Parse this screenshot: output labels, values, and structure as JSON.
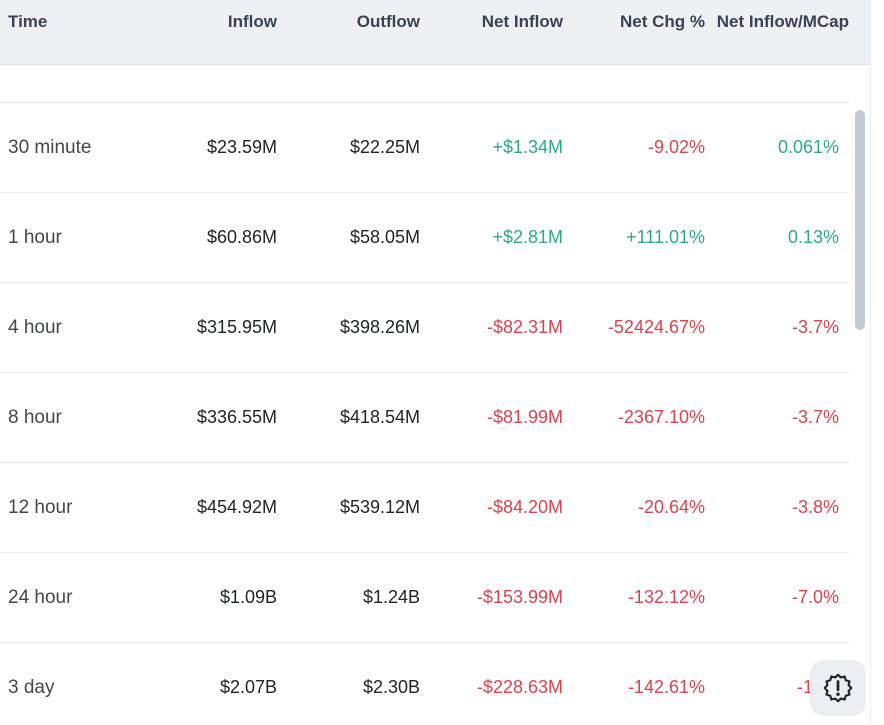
{
  "table": {
    "columns": [
      "Time",
      "Inflow",
      "Outflow",
      "Net Inflow",
      "Net Chg %",
      "Net Inflow/MCap"
    ],
    "rows": [
      {
        "cells": [
          {
            "text": "30 minute",
            "color": "default"
          },
          {
            "text": "$23.59M",
            "color": "default"
          },
          {
            "text": "$22.25M",
            "color": "default"
          },
          {
            "text": "+$1.34M",
            "color": "green"
          },
          {
            "text": "-9.02%",
            "color": "red"
          },
          {
            "text": "0.061%",
            "color": "green"
          }
        ]
      },
      {
        "cells": [
          {
            "text": "1 hour",
            "color": "default"
          },
          {
            "text": "$60.86M",
            "color": "default"
          },
          {
            "text": "$58.05M",
            "color": "default"
          },
          {
            "text": "+$2.81M",
            "color": "green"
          },
          {
            "text": "+111.01%",
            "color": "green"
          },
          {
            "text": "0.13%",
            "color": "green"
          }
        ]
      },
      {
        "cells": [
          {
            "text": "4 hour",
            "color": "default"
          },
          {
            "text": "$315.95M",
            "color": "default"
          },
          {
            "text": "$398.26M",
            "color": "default"
          },
          {
            "text": "-$82.31M",
            "color": "red"
          },
          {
            "text": "-52424.67%",
            "color": "red"
          },
          {
            "text": "-3.7%",
            "color": "red"
          }
        ]
      },
      {
        "cells": [
          {
            "text": "8 hour",
            "color": "default"
          },
          {
            "text": "$336.55M",
            "color": "default"
          },
          {
            "text": "$418.54M",
            "color": "default"
          },
          {
            "text": "-$81.99M",
            "color": "red"
          },
          {
            "text": "-2367.10%",
            "color": "red"
          },
          {
            "text": "-3.7%",
            "color": "red"
          }
        ]
      },
      {
        "cells": [
          {
            "text": "12 hour",
            "color": "default"
          },
          {
            "text": "$454.92M",
            "color": "default"
          },
          {
            "text": "$539.12M",
            "color": "default"
          },
          {
            "text": "-$84.20M",
            "color": "red"
          },
          {
            "text": "-20.64%",
            "color": "red"
          },
          {
            "text": "-3.8%",
            "color": "red"
          }
        ]
      },
      {
        "cells": [
          {
            "text": "24 hour",
            "color": "default"
          },
          {
            "text": "$1.09B",
            "color": "default"
          },
          {
            "text": "$1.24B",
            "color": "default"
          },
          {
            "text": "-$153.99M",
            "color": "red"
          },
          {
            "text": "-132.12%",
            "color": "red"
          },
          {
            "text": "-7.0%",
            "color": "red"
          }
        ]
      },
      {
        "cells": [
          {
            "text": "3 day",
            "color": "default"
          },
          {
            "text": "$2.07B",
            "color": "default"
          },
          {
            "text": "$2.30B",
            "color": "default"
          },
          {
            "text": "-$228.63M",
            "color": "red"
          },
          {
            "text": "-142.61%",
            "color": "red"
          },
          {
            "text": "-10%",
            "color": "red"
          }
        ]
      }
    ]
  },
  "colors": {
    "green": "#2ca98c",
    "red": "#d8444f"
  },
  "icons": {
    "floating_button": "gear-alert-icon"
  }
}
